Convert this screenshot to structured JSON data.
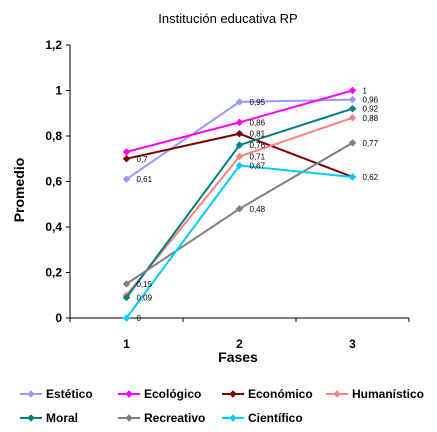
{
  "chart_data": {
    "type": "line",
    "title": "Institución educativa RP",
    "xlabel": "Fases",
    "ylabel": "Promedio",
    "categories": [
      "1",
      "2",
      "3"
    ],
    "ylim": [
      0,
      1.2
    ],
    "yticks": [
      "0",
      "0,2",
      "0,4",
      "0,6",
      "0,8",
      "1",
      "1,2"
    ],
    "grid": false,
    "legend_position": "bottom",
    "series": [
      {
        "name": "Estético",
        "color": "#9999ff",
        "values": [
          0.61,
          0.95,
          0.96
        ],
        "labels": [
          "0,61",
          "0,95",
          "0,96"
        ]
      },
      {
        "name": "Ecológico",
        "color": "#ff00ff",
        "values": [
          0.73,
          0.86,
          1.0
        ],
        "labels": [
          "",
          "0,86",
          "1"
        ]
      },
      {
        "name": "Económico",
        "color": "#800000",
        "values": [
          0.7,
          0.81,
          0.62
        ],
        "labels": [
          "0,7",
          "0,81",
          ""
        ]
      },
      {
        "name": "Humanístico",
        "color": "#ff8080",
        "values": [
          0.1,
          0.71,
          0.88
        ],
        "labels": [
          "",
          "0,71",
          "0,88"
        ]
      },
      {
        "name": "Moral",
        "color": "#008080",
        "values": [
          0.09,
          0.76,
          0.92
        ],
        "labels": [
          "0,09",
          "0,76",
          "0,92"
        ]
      },
      {
        "name": "Recreativo",
        "color": "#808080",
        "values": [
          0.15,
          0.48,
          0.77
        ],
        "labels": [
          "0,15",
          "0,48",
          "0,77"
        ]
      },
      {
        "name": "Científico",
        "color": "#00ccff",
        "values": [
          0.0,
          0.67,
          0.62
        ],
        "labels": [
          "0",
          "0,67",
          "0,62"
        ]
      }
    ]
  }
}
